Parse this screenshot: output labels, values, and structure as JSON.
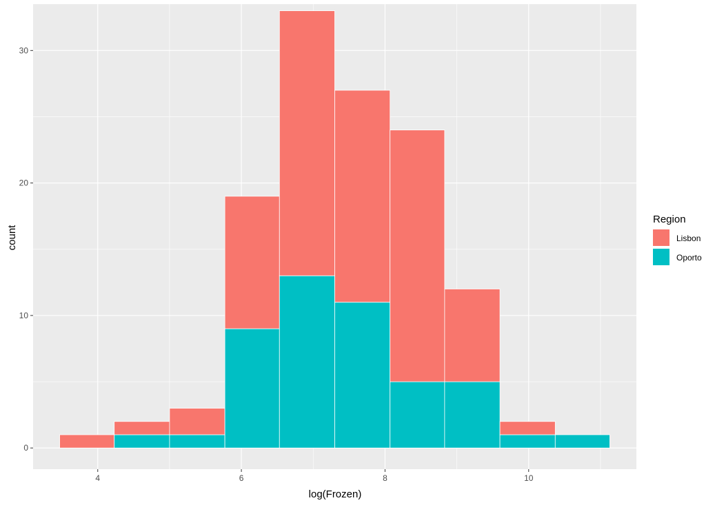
{
  "chart_data": {
    "type": "bar",
    "stacked": true,
    "histogram": true,
    "title": "",
    "xlabel": "log(Frozen)",
    "ylabel": "count",
    "xlim": [
      3.1,
      11.5
    ],
    "ylim": [
      -1.6,
      33.5
    ],
    "x_ticks": [
      4,
      6,
      8,
      10
    ],
    "x_minor_ticks": [
      3,
      5,
      7,
      9,
      11
    ],
    "y_ticks": [
      0,
      10,
      20,
      30
    ],
    "y_minor_ticks": [
      5,
      15,
      25
    ],
    "bins": [
      {
        "x0": 3.47,
        "x1": 4.23
      },
      {
        "x0": 4.23,
        "x1": 5.0
      },
      {
        "x0": 5.0,
        "x1": 5.77
      },
      {
        "x0": 5.77,
        "x1": 6.53
      },
      {
        "x0": 6.53,
        "x1": 7.3
      },
      {
        "x0": 7.3,
        "x1": 8.07
      },
      {
        "x0": 8.07,
        "x1": 8.83
      },
      {
        "x0": 8.83,
        "x1": 9.6
      },
      {
        "x0": 9.6,
        "x1": 10.37
      },
      {
        "x0": 10.37,
        "x1": 11.13
      }
    ],
    "series": [
      {
        "name": "Oporto",
        "color": "#00BFC4",
        "values": [
          0,
          1,
          1,
          9,
          13,
          11,
          5,
          5,
          1,
          1
        ]
      },
      {
        "name": "Lisbon",
        "color": "#F8766D",
        "values": [
          1,
          1,
          2,
          10,
          20,
          16,
          19,
          7,
          1,
          0
        ]
      }
    ],
    "legend": {
      "title": "Region",
      "position": "right",
      "entries": [
        {
          "label": "Lisbon",
          "color": "#F8766D"
        },
        {
          "label": "Oporto",
          "color": "#00BFC4"
        }
      ]
    },
    "grid": true,
    "panel_background": "#EBEBEB",
    "grid_color": "#FFFFFF"
  }
}
